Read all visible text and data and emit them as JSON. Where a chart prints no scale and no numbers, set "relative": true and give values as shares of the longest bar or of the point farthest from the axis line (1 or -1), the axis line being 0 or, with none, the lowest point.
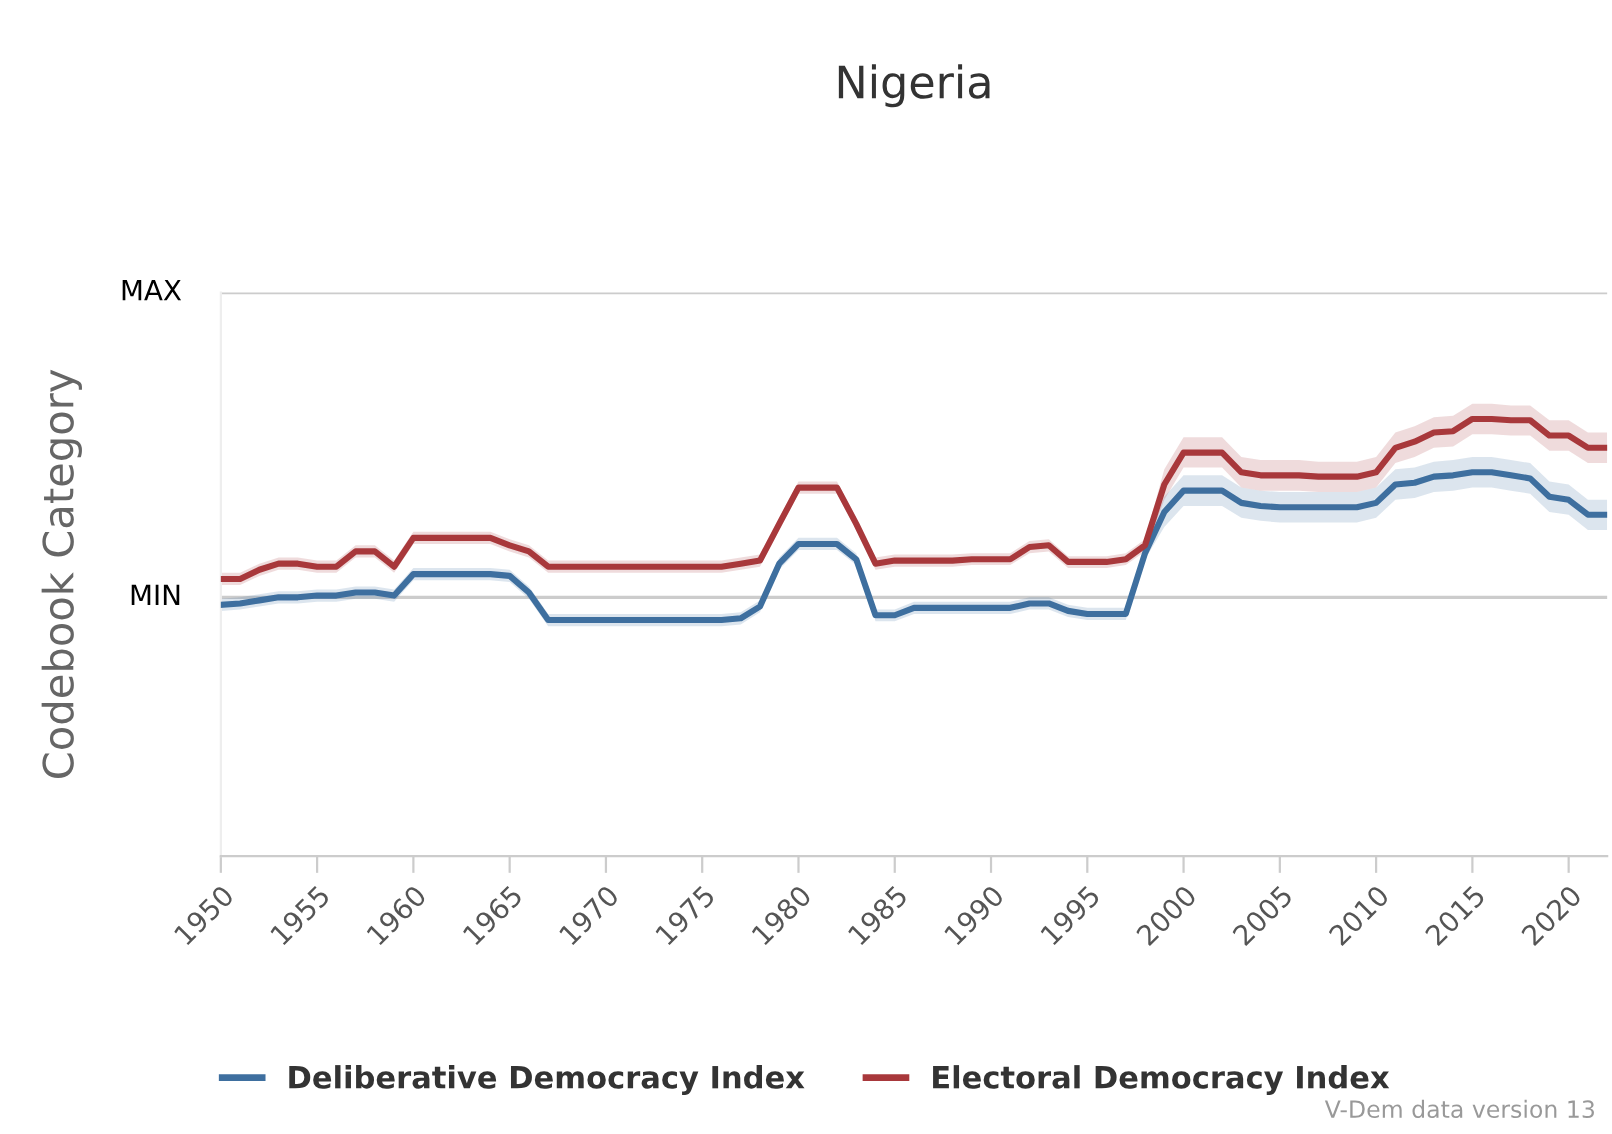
{
  "chart_data": {
    "type": "line",
    "title": "Nigeria",
    "ylabel": "Codebook Category",
    "relative": true,
    "x": [
      1950,
      1951,
      1952,
      1953,
      1954,
      1955,
      1956,
      1957,
      1958,
      1959,
      1960,
      1961,
      1962,
      1963,
      1964,
      1965,
      1966,
      1967,
      1968,
      1969,
      1970,
      1971,
      1972,
      1973,
      1974,
      1975,
      1976,
      1977,
      1978,
      1979,
      1980,
      1981,
      1982,
      1983,
      1984,
      1985,
      1986,
      1987,
      1988,
      1989,
      1990,
      1991,
      1992,
      1993,
      1994,
      1995,
      1996,
      1997,
      1998,
      1999,
      2000,
      2001,
      2002,
      2003,
      2004,
      2005,
      2006,
      2007,
      2008,
      2009,
      2010,
      2011,
      2012,
      2013,
      2014,
      2015,
      2016,
      2017,
      2018,
      2019,
      2020,
      2021,
      2022
    ],
    "series": [
      {
        "name": "Deliberative Democracy Index",
        "color": "#3e6f9f",
        "values": [
          0.575,
          0.578,
          0.585,
          0.592,
          0.592,
          0.596,
          0.596,
          0.603,
          0.603,
          0.596,
          0.645,
          0.645,
          0.645,
          0.645,
          0.645,
          0.641,
          0.603,
          0.54,
          0.54,
          0.54,
          0.54,
          0.54,
          0.54,
          0.54,
          0.54,
          0.54,
          0.54,
          0.544,
          0.571,
          0.669,
          0.714,
          0.714,
          0.714,
          0.679,
          0.551,
          0.551,
          0.568,
          0.568,
          0.568,
          0.568,
          0.568,
          0.568,
          0.578,
          0.578,
          0.561,
          0.554,
          0.554,
          0.554,
          0.693,
          0.787,
          0.836,
          0.836,
          0.836,
          0.808,
          0.801,
          0.798,
          0.798,
          0.798,
          0.798,
          0.798,
          0.808,
          0.85,
          0.854,
          0.868,
          0.871,
          0.878,
          0.878,
          0.871,
          0.864,
          0.822,
          0.815,
          0.781,
          0.781
        ],
        "lower": [
          0.561,
          0.564,
          0.571,
          0.578,
          0.578,
          0.582,
          0.582,
          0.589,
          0.589,
          0.582,
          0.631,
          0.631,
          0.631,
          0.631,
          0.631,
          0.627,
          0.589,
          0.526,
          0.526,
          0.526,
          0.526,
          0.526,
          0.526,
          0.526,
          0.526,
          0.526,
          0.526,
          0.53,
          0.558,
          0.655,
          0.7,
          0.7,
          0.7,
          0.666,
          0.537,
          0.537,
          0.554,
          0.554,
          0.554,
          0.554,
          0.554,
          0.554,
          0.564,
          0.564,
          0.547,
          0.54,
          0.54,
          0.54,
          0.679,
          0.753,
          0.801,
          0.801,
          0.801,
          0.774,
          0.767,
          0.763,
          0.763,
          0.763,
          0.763,
          0.763,
          0.774,
          0.815,
          0.819,
          0.833,
          0.836,
          0.843,
          0.843,
          0.836,
          0.829,
          0.787,
          0.781,
          0.746,
          0.746
        ],
        "upper": [
          0.589,
          0.592,
          0.599,
          0.606,
          0.606,
          0.61,
          0.61,
          0.617,
          0.617,
          0.61,
          0.659,
          0.659,
          0.659,
          0.659,
          0.659,
          0.655,
          0.617,
          0.554,
          0.554,
          0.554,
          0.554,
          0.554,
          0.554,
          0.554,
          0.554,
          0.554,
          0.554,
          0.558,
          0.585,
          0.683,
          0.728,
          0.728,
          0.728,
          0.693,
          0.564,
          0.564,
          0.582,
          0.582,
          0.582,
          0.582,
          0.582,
          0.582,
          0.592,
          0.592,
          0.575,
          0.568,
          0.568,
          0.568,
          0.707,
          0.822,
          0.871,
          0.871,
          0.871,
          0.843,
          0.836,
          0.833,
          0.833,
          0.833,
          0.833,
          0.833,
          0.843,
          0.885,
          0.889,
          0.902,
          0.906,
          0.913,
          0.913,
          0.906,
          0.899,
          0.857,
          0.85,
          0.815,
          0.815
        ]
      },
      {
        "name": "Electoral Democracy Index",
        "color": "#a8383b",
        "values": [
          0.634,
          0.634,
          0.655,
          0.669,
          0.669,
          0.662,
          0.662,
          0.697,
          0.697,
          0.662,
          0.728,
          0.728,
          0.728,
          0.728,
          0.728,
          0.711,
          0.697,
          0.662,
          0.662,
          0.662,
          0.662,
          0.662,
          0.662,
          0.662,
          0.662,
          0.662,
          0.662,
          0.669,
          0.676,
          0.76,
          0.843,
          0.843,
          0.843,
          0.76,
          0.669,
          0.676,
          0.676,
          0.676,
          0.676,
          0.679,
          0.679,
          0.679,
          0.707,
          0.711,
          0.673,
          0.673,
          0.673,
          0.679,
          0.711,
          0.85,
          0.923,
          0.923,
          0.923,
          0.878,
          0.871,
          0.871,
          0.871,
          0.868,
          0.868,
          0.868,
          0.878,
          0.934,
          0.948,
          0.969,
          0.972,
          1.0,
          1.0,
          0.997,
          0.997,
          0.962,
          0.962,
          0.934,
          0.934
        ],
        "lower": [
          0.62,
          0.62,
          0.641,
          0.655,
          0.655,
          0.648,
          0.648,
          0.683,
          0.683,
          0.648,
          0.714,
          0.714,
          0.714,
          0.714,
          0.714,
          0.697,
          0.683,
          0.648,
          0.648,
          0.648,
          0.648,
          0.648,
          0.648,
          0.648,
          0.648,
          0.648,
          0.648,
          0.655,
          0.662,
          0.746,
          0.829,
          0.829,
          0.829,
          0.746,
          0.655,
          0.662,
          0.662,
          0.662,
          0.662,
          0.666,
          0.666,
          0.666,
          0.693,
          0.697,
          0.659,
          0.659,
          0.659,
          0.666,
          0.697,
          0.815,
          0.889,
          0.889,
          0.889,
          0.843,
          0.836,
          0.836,
          0.836,
          0.833,
          0.833,
          0.833,
          0.843,
          0.899,
          0.913,
          0.934,
          0.937,
          0.965,
          0.965,
          0.962,
          0.962,
          0.927,
          0.927,
          0.899,
          0.899
        ],
        "upper": [
          0.648,
          0.648,
          0.669,
          0.683,
          0.683,
          0.676,
          0.676,
          0.711,
          0.711,
          0.676,
          0.742,
          0.742,
          0.742,
          0.742,
          0.742,
          0.725,
          0.711,
          0.676,
          0.676,
          0.676,
          0.676,
          0.676,
          0.676,
          0.676,
          0.676,
          0.676,
          0.676,
          0.683,
          0.69,
          0.774,
          0.857,
          0.857,
          0.857,
          0.774,
          0.683,
          0.69,
          0.69,
          0.69,
          0.69,
          0.693,
          0.693,
          0.693,
          0.721,
          0.725,
          0.686,
          0.686,
          0.686,
          0.693,
          0.725,
          0.885,
          0.958,
          0.958,
          0.958,
          0.913,
          0.906,
          0.906,
          0.906,
          0.902,
          0.902,
          0.902,
          0.913,
          0.969,
          0.983,
          1.004,
          1.007,
          1.035,
          1.035,
          1.031,
          1.031,
          0.997,
          0.997,
          0.969,
          0.969
        ]
      }
    ],
    "xlim": [
      1950,
      2022
    ],
    "xticks": [
      1950,
      1955,
      1960,
      1965,
      1970,
      1975,
      1980,
      1985,
      1990,
      1995,
      2000,
      2005,
      2010,
      2015,
      2020
    ],
    "ref_lines": [
      {
        "axis": "y",
        "value": 0.592,
        "label": "MIN",
        "color": "#cccccc"
      },
      {
        "axis": "y",
        "value": 1.289,
        "label": "MAX",
        "color": "#cccccc"
      }
    ],
    "legend": "bottom",
    "marker": "none",
    "line_style": "solid",
    "annotations": [
      "V-Dem data version 13"
    ]
  }
}
